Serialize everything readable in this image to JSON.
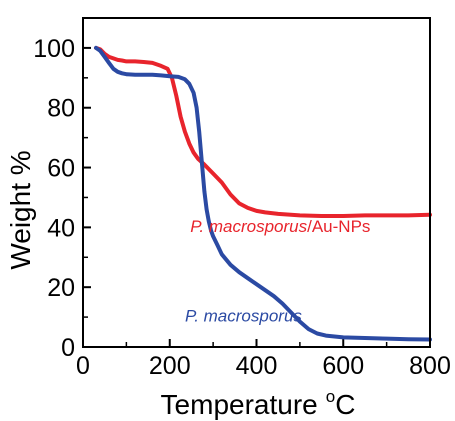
{
  "chart_data": {
    "type": "line",
    "xlabel": "Temperature",
    "xlabel_unit_sup": "o",
    "xlabel_unit": "C",
    "ylabel": "Weight %",
    "xlim": [
      0,
      800
    ],
    "ylim": [
      0,
      110
    ],
    "xticks": [
      0,
      200,
      400,
      600,
      800
    ],
    "yticks": [
      0,
      20,
      40,
      60,
      80,
      100
    ],
    "xtick_labels": [
      "0",
      "200",
      "400",
      "600",
      "800"
    ],
    "ytick_labels": [
      "0",
      "20",
      "40",
      "60",
      "80",
      "100"
    ],
    "grid": false,
    "series": [
      {
        "name": "P. macrosporus/Au-NPs",
        "color": "#e8242c",
        "x": [
          30,
          40,
          50,
          60,
          70,
          80,
          90,
          100,
          120,
          140,
          160,
          180,
          195,
          205,
          215,
          225,
          235,
          245,
          255,
          265,
          280,
          300,
          320,
          340,
          360,
          380,
          400,
          420,
          450,
          500,
          550,
          600,
          650,
          700,
          750,
          800
        ],
        "y": [
          100,
          99.5,
          98,
          97,
          96.5,
          96,
          95.8,
          95.5,
          95.5,
          95.3,
          95,
          94,
          93,
          90,
          84,
          77,
          72,
          68,
          65,
          63,
          61,
          58,
          55,
          51,
          48,
          46.5,
          45.5,
          45,
          44.5,
          44,
          43.8,
          43.8,
          44,
          44,
          44,
          44.2
        ]
      },
      {
        "name": "P. macrosporus",
        "color": "#2b4aa3",
        "x": [
          30,
          40,
          50,
          60,
          70,
          80,
          90,
          100,
          120,
          140,
          160,
          180,
          200,
          220,
          235,
          245,
          255,
          262,
          268,
          275,
          280,
          285,
          290,
          295,
          300,
          310,
          320,
          340,
          360,
          380,
          400,
          420,
          440,
          460,
          480,
          500,
          520,
          540,
          560,
          600,
          650,
          700,
          750,
          800
        ],
        "y": [
          100,
          99,
          97,
          95,
          93,
          92,
          91.5,
          91.2,
          91,
          91,
          91,
          90.8,
          90.5,
          90.3,
          89.5,
          88,
          85,
          80,
          72,
          60,
          52,
          46,
          42,
          39,
          37,
          34,
          31,
          27.5,
          25,
          23,
          21,
          19,
          17,
          14.5,
          11.5,
          8.5,
          6,
          4.5,
          3.8,
          3.2,
          3,
          2.8,
          2.6,
          2.5
        ]
      }
    ],
    "annotations": [
      {
        "italic": "P. macrosporus",
        "rest": "/Au-NPs",
        "color": "#e8242c",
        "at": [
          455,
          38.5
        ]
      },
      {
        "italic": "P. macrosporus",
        "rest": "",
        "color": "#2b4aa3",
        "at": [
          370,
          8.5
        ]
      }
    ]
  }
}
